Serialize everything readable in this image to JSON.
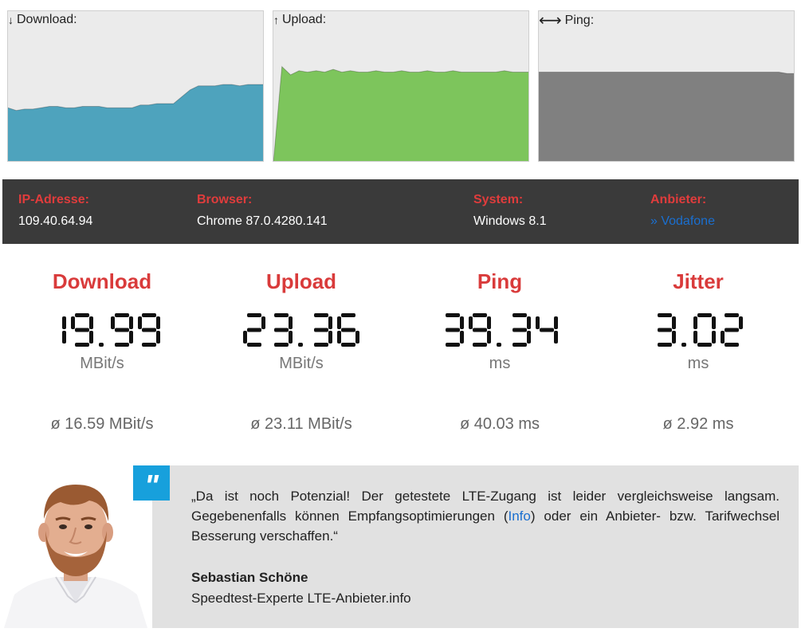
{
  "graphs": {
    "download": {
      "label": "Download:",
      "arrow": "↓",
      "color": "#4ea3bd",
      "values": [
        0.4,
        0.38,
        0.39,
        0.39,
        0.4,
        0.41,
        0.41,
        0.4,
        0.4,
        0.41,
        0.41,
        0.41,
        0.4,
        0.4,
        0.4,
        0.4,
        0.42,
        0.42,
        0.43,
        0.43,
        0.43,
        0.48,
        0.53,
        0.56,
        0.56,
        0.56,
        0.57,
        0.57,
        0.56,
        0.57,
        0.57,
        0.57
      ]
    },
    "upload": {
      "label": "Upload:",
      "arrow": "↑",
      "color": "#7dc55c",
      "values": [
        0.0,
        0.7,
        0.64,
        0.67,
        0.66,
        0.67,
        0.66,
        0.68,
        0.66,
        0.67,
        0.66,
        0.66,
        0.67,
        0.66,
        0.66,
        0.67,
        0.66,
        0.66,
        0.67,
        0.66,
        0.66,
        0.67,
        0.66,
        0.66,
        0.66,
        0.66,
        0.66,
        0.67,
        0.66,
        0.66,
        0.66
      ]
    },
    "ping": {
      "label": "Ping:",
      "arrow": "⟷",
      "color": "#808080",
      "values": [
        0.66,
        0.66,
        0.66,
        0.66,
        0.66,
        0.66,
        0.66,
        0.66,
        0.66,
        0.66,
        0.66,
        0.66,
        0.66,
        0.66,
        0.66,
        0.66,
        0.66,
        0.66,
        0.66,
        0.66,
        0.66,
        0.66,
        0.66,
        0.66,
        0.66,
        0.66,
        0.66,
        0.66,
        0.66,
        0.66,
        0.65,
        0.65
      ]
    }
  },
  "info": {
    "ip": {
      "label": "IP-Adresse:",
      "value": "109.40.64.94"
    },
    "browser": {
      "label": "Browser:",
      "value": "Chrome 87.0.4280.141"
    },
    "system": {
      "label": "System:",
      "value": "Windows 8.1"
    },
    "provider": {
      "label": "Anbieter:",
      "value": "» Vodafone"
    }
  },
  "results": {
    "download": {
      "title": "Download",
      "value": "19.99",
      "unit": "MBit/s",
      "avg": "ø 16.59 MBit/s"
    },
    "upload": {
      "title": "Upload",
      "value": "23.36",
      "unit": "MBit/s",
      "avg": "ø 23.11 MBit/s"
    },
    "ping": {
      "title": "Ping",
      "value": "39.34",
      "unit": "ms",
      "avg": "ø 40.03 ms"
    },
    "jitter": {
      "title": "Jitter",
      "value": "3.02",
      "unit": "ms",
      "avg": "ø 2.92 ms"
    }
  },
  "quote": {
    "badge": "\"",
    "text_before": "„Da ist noch Potenzial! Der getestete LTE-Zugang ist leider vergleichsweise langsam. Gegebenenfalls können Empfangsoptimierungen (",
    "link": "Info",
    "text_after": ") oder ein Anbieter- bzw. Tarifwechsel Besserung verschaffen.“",
    "author_name": "Sebastian Schöne",
    "author_title": "Speedtest-Experte LTE-Anbieter.info"
  }
}
